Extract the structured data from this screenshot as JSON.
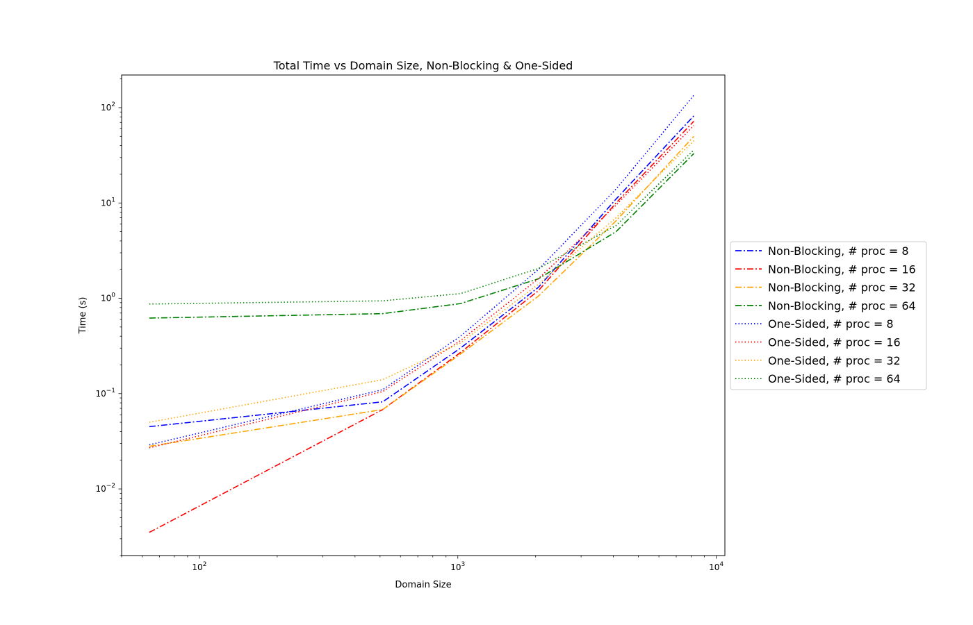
{
  "chart_data": {
    "type": "line",
    "title": "Total Time vs Domain Size, Non-Blocking & One-Sided",
    "xlabel": "Domain Size",
    "ylabel": "Time (s)",
    "xscale": "log",
    "yscale": "log",
    "xlim": [
      50,
      10800
    ],
    "ylim": [
      0.002,
      220
    ],
    "grid": false,
    "legend_position": "outside-right",
    "x_ticks": [
      {
        "value": 100,
        "base": "10",
        "exp": "2"
      },
      {
        "value": 1000,
        "base": "10",
        "exp": "3"
      },
      {
        "value": 10000,
        "base": "10",
        "exp": "4"
      }
    ],
    "y_ticks": [
      {
        "value": 0.01,
        "base": "10",
        "exp": "−2"
      },
      {
        "value": 0.1,
        "base": "10",
        "exp": "−1"
      },
      {
        "value": 1,
        "base": "10",
        "exp": "0"
      },
      {
        "value": 10,
        "base": "10",
        "exp": "1"
      },
      {
        "value": 100,
        "base": "10",
        "exp": "2"
      }
    ],
    "x": [
      64,
      512,
      1024,
      2048,
      4096,
      8192
    ],
    "series": [
      {
        "name": "Non-Blocking, # proc = 8",
        "color": "#0000ff",
        "style": "dashdot",
        "values": [
          0.045,
          0.082,
          0.3,
          1.3,
          11.0,
          82.0
        ]
      },
      {
        "name": "Non-Blocking, # proc = 16",
        "color": "#ff0000",
        "style": "dashdot",
        "values": [
          0.0035,
          0.068,
          0.27,
          1.2,
          10.0,
          72.0
        ]
      },
      {
        "name": "Non-Blocking, # proc = 32",
        "color": "#ffa500",
        "style": "dashdot",
        "values": [
          0.028,
          0.068,
          0.26,
          1.05,
          6.5,
          50.0
        ]
      },
      {
        "name": "Non-Blocking, # proc = 64",
        "color": "#008000",
        "style": "dashdot",
        "values": [
          0.62,
          0.69,
          0.88,
          1.6,
          5.0,
          33.0
        ]
      },
      {
        "name": "One-Sided, # proc = 8",
        "color": "#0000ff",
        "style": "dotted",
        "values": [
          0.029,
          0.11,
          0.4,
          2.0,
          14.0,
          135.0
        ]
      },
      {
        "name": "One-Sided, # proc = 16",
        "color": "#ff0000",
        "style": "dotted",
        "values": [
          0.027,
          0.105,
          0.36,
          1.6,
          9.5,
          65.0
        ]
      },
      {
        "name": "One-Sided, # proc = 32",
        "color": "#ffa500",
        "style": "dotted",
        "values": [
          0.05,
          0.14,
          0.34,
          1.4,
          7.0,
          45.0
        ]
      },
      {
        "name": "One-Sided, # proc = 64",
        "color": "#008000",
        "style": "dotted",
        "values": [
          0.87,
          0.94,
          1.12,
          2.05,
          5.8,
          36.0
        ]
      }
    ]
  }
}
